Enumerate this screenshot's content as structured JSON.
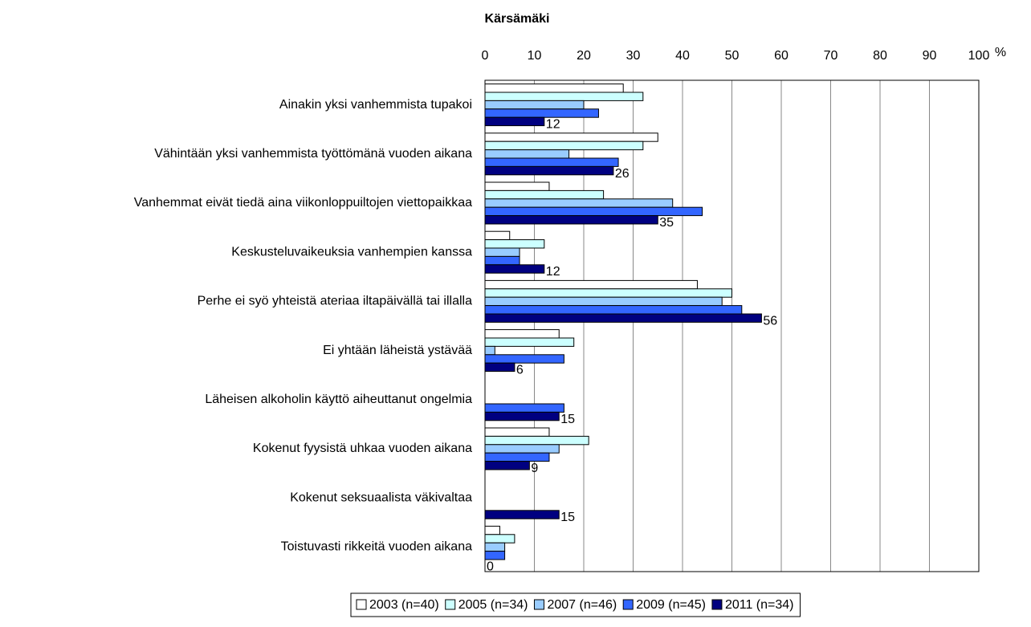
{
  "chart_data": {
    "type": "barh",
    "title": "Kärsämäki",
    "xlabel": "%",
    "categories": [
      "Ainakin yksi vanhemmista tupakoi",
      "Vähintään yksi vanhemmista työttömänä vuoden aikana",
      "Vanhemmat eivät tiedä aina viikonloppuiltojen viettopaikkaa",
      "Keskusteluvaikeuksia vanhempien kanssa",
      "Perhe ei syö yhteistä ateriaa iltapäivällä tai illalla",
      "Ei yhtään läheistä ystävää",
      "Läheisen alkoholin käyttö aiheuttanut ongelmia",
      "Kokenut fyysistä uhkaa vuoden aikana",
      "Kokenut seksuaalista väkivaltaa",
      "Toistuvasti rikkeitä vuoden aikana"
    ],
    "series": [
      {
        "name": "2003 (n=40)",
        "color": "#ffffff",
        "values": [
          28,
          35,
          13,
          5,
          43,
          15,
          null,
          13,
          null,
          3
        ]
      },
      {
        "name": "2005 (n=34)",
        "color": "#ccffff",
        "values": [
          32,
          32,
          24,
          12,
          50,
          18,
          null,
          21,
          null,
          6
        ]
      },
      {
        "name": "2007 (n=46)",
        "color": "#99ccff",
        "values": [
          20,
          17,
          38,
          7,
          48,
          2,
          null,
          15,
          null,
          4
        ]
      },
      {
        "name": "2009 (n=45)",
        "color": "#3366ff",
        "values": [
          23,
          27,
          44,
          7,
          52,
          16,
          16,
          13,
          null,
          4
        ]
      },
      {
        "name": "2011 (n=34)",
        "color": "#000080",
        "values": [
          12,
          26,
          35,
          12,
          56,
          6,
          15,
          9,
          15,
          0
        ],
        "data_labels": true
      }
    ],
    "xlim": [
      0,
      100
    ],
    "xticks": [
      0,
      10,
      20,
      30,
      40,
      50,
      60,
      70,
      80,
      90,
      100
    ],
    "grid": true,
    "legend": "bottom"
  }
}
